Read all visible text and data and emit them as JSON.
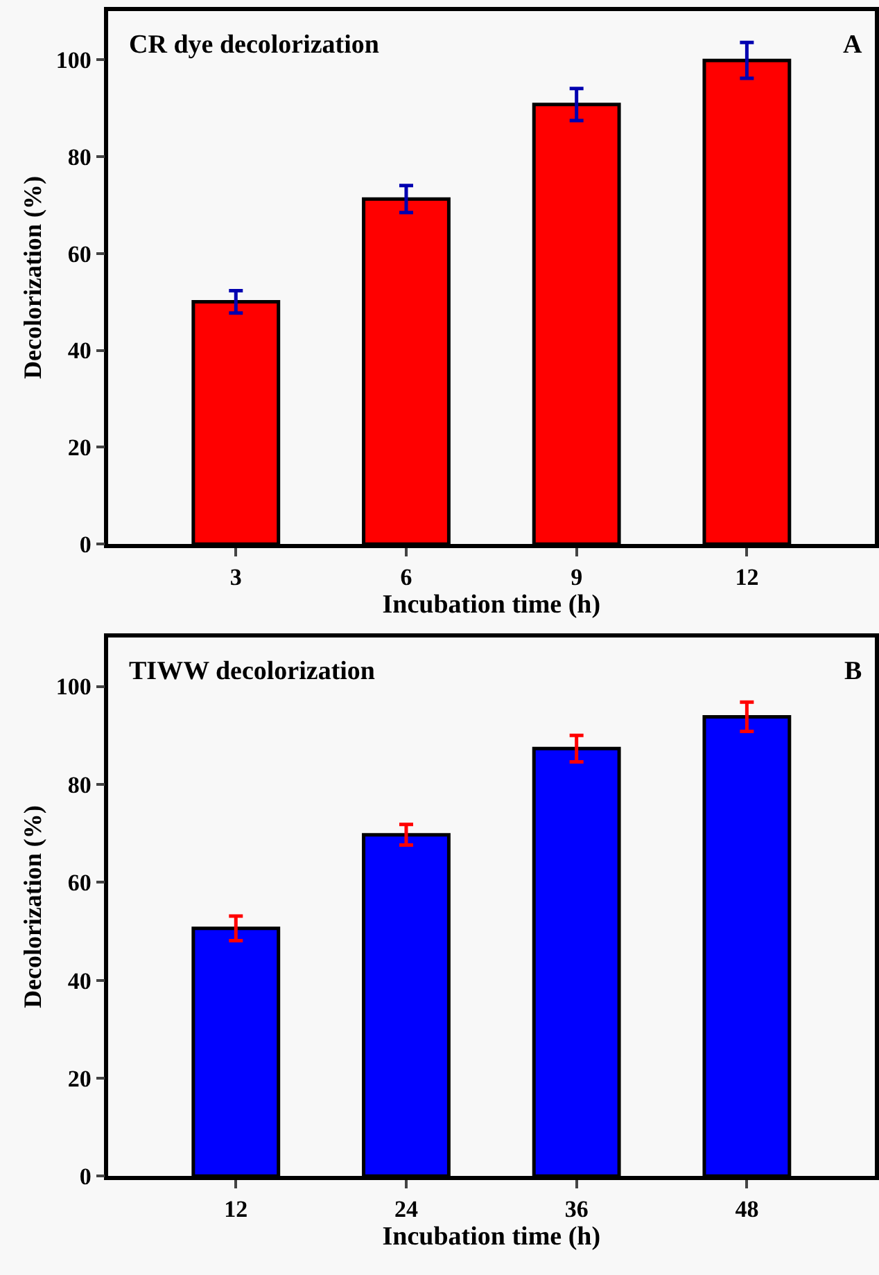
{
  "chart_data": [
    {
      "type": "bar",
      "title": "CR dye decolorization",
      "annotations": [
        "A"
      ],
      "xlabel": "Incubation time (h)",
      "ylabel": "Decolorization (%)",
      "categories": [
        "3",
        "6",
        "9",
        "12"
      ],
      "values": [
        50.0,
        71.2,
        90.7,
        99.8
      ],
      "errors": [
        2.3,
        2.8,
        3.3,
        3.7
      ],
      "color": "#ff0000",
      "ylim": [
        0,
        110
      ],
      "yticks": [
        0,
        20,
        40,
        60,
        80,
        100
      ],
      "grid": false
    },
    {
      "type": "bar",
      "title": "TIWW decolorization",
      "annotations": [
        "B"
      ],
      "xlabel": "Incubation time (h)",
      "ylabel": "Decolorization (%)",
      "categories": [
        "12",
        "24",
        "36",
        "48"
      ],
      "values": [
        50.6,
        69.7,
        87.3,
        93.8
      ],
      "errors": [
        2.5,
        2.1,
        2.7,
        3.0
      ],
      "color": "#0000ff",
      "ylim": [
        0,
        110
      ],
      "yticks": [
        0,
        20,
        40,
        60,
        80,
        100
      ],
      "grid": false
    }
  ]
}
